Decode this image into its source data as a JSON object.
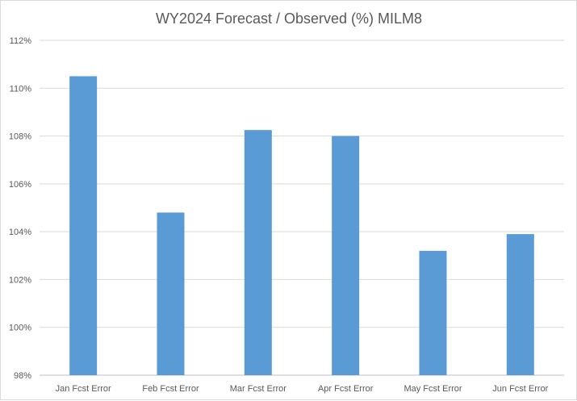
{
  "chart_data": {
    "type": "bar",
    "title": "WY2024 Forecast / Observed (%) MILM8",
    "xlabel": "",
    "ylabel": "",
    "categories": [
      "Jan Fcst Error",
      "Feb Fcst Error",
      "Mar Fcst Error",
      "Apr Fcst Error",
      "May Fcst Error",
      "Jun Fcst Error"
    ],
    "values": [
      110.5,
      104.8,
      108.25,
      108.0,
      103.2,
      103.9
    ],
    "ylim": [
      98,
      112
    ],
    "ytick_values": [
      98,
      100,
      102,
      104,
      106,
      108,
      110,
      112
    ],
    "ytick_labels": [
      "98%",
      "100%",
      "102%",
      "104%",
      "106%",
      "108%",
      "110%",
      "112%"
    ],
    "grid": true,
    "legend": "none",
    "bar_color": "#5b9bd5"
  }
}
